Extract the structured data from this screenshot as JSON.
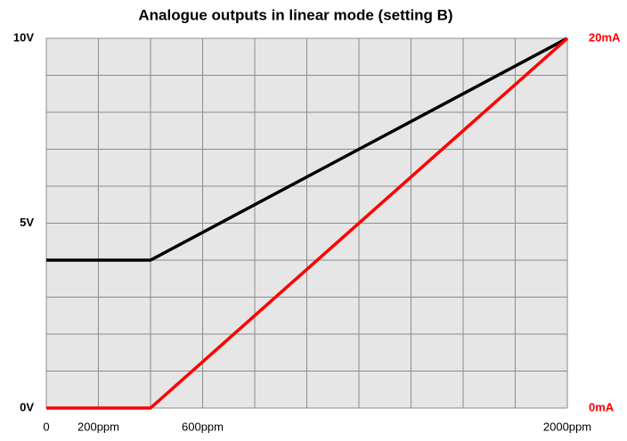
{
  "chart_data": {
    "type": "line",
    "title": "Analogue outputs in linear mode (setting B)",
    "x": [
      0,
      400,
      2000
    ],
    "series": [
      {
        "color": "#000000",
        "values": [
          4,
          4,
          10
        ]
      },
      {
        "color": "#ff0000",
        "values": [
          0,
          0,
          20
        ],
        "axis": "y2"
      }
    ],
    "xlim": [
      0,
      2000
    ],
    "xticks": [
      0,
      {
        "value": 200,
        "label": "200ppm"
      },
      {
        "value": 600,
        "label": "600ppm"
      },
      {
        "value": 2000,
        "label": "2000ppm"
      }
    ],
    "xgrid": [
      0,
      200,
      400,
      600,
      800,
      1000,
      1200,
      1400,
      1600,
      1800,
      2000
    ],
    "ylim": [
      0,
      10
    ],
    "yticks": [
      {
        "value": 0,
        "label": "0V"
      },
      {
        "value": 5,
        "label": "5V"
      },
      {
        "value": 10,
        "label": "10V"
      }
    ],
    "ygrid": [
      0,
      1,
      2,
      3,
      4,
      5,
      6,
      7,
      8,
      9,
      10
    ],
    "y2lim": [
      0,
      20
    ],
    "y2ticks": [
      {
        "value": 0,
        "label": "0mA"
      },
      {
        "value": 20,
        "label": "20mA"
      }
    ],
    "y2color": "#ff0000",
    "grid": true
  }
}
